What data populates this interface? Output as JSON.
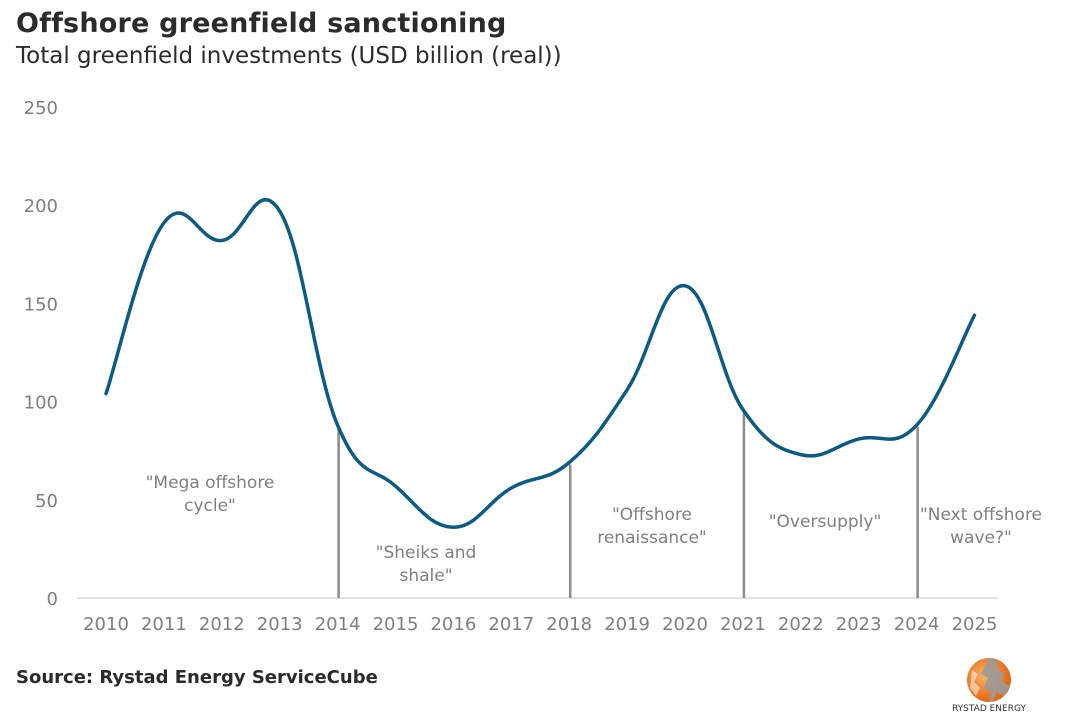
{
  "chart_data": {
    "type": "line",
    "title": "Offshore greenfield sanctioning",
    "subtitle": "Total greenfield investments (USD billion (real))",
    "xlabel": "",
    "ylabel": "",
    "categories": [
      "2010",
      "2011",
      "2012",
      "2013",
      "2014",
      "2015",
      "2016",
      "2017",
      "2018",
      "2019",
      "2020",
      "2021",
      "2022",
      "2023",
      "2024",
      "2025"
    ],
    "series": [
      {
        "name": "Total greenfield investments",
        "color": "#0b5b85",
        "values": [
          104,
          191,
          182,
          197,
          88,
          57,
          36,
          56,
          69,
          106,
          159,
          96,
          73,
          81,
          88,
          144
        ]
      }
    ],
    "ylim": [
      0,
      250
    ],
    "yticks": [
      "0",
      "50",
      "100",
      "150",
      "200",
      "250"
    ],
    "ytick_values": [
      0,
      50,
      100,
      150,
      200,
      250
    ],
    "grid": false,
    "legend": "none",
    "period_dividers": [
      "2014",
      "2018",
      "2021",
      "2024"
    ],
    "annotations": [
      {
        "lines": [
          "\"Mega offshore",
          "cycle\""
        ],
        "period": "2010-2014"
      },
      {
        "lines": [
          "\"Sheiks and",
          "shale\""
        ],
        "period": "2014-2018"
      },
      {
        "lines": [
          "\"Offshore",
          "renaissance\""
        ],
        "period": "2018-2021"
      },
      {
        "lines": [
          "\"Oversupply\""
        ],
        "period": "2021-2024"
      },
      {
        "lines": [
          "\"Next offshore",
          "wave?\""
        ],
        "period": "2024-2025"
      }
    ]
  },
  "footer": {
    "source": "Source: Rystad Energy ServiceCube",
    "logo_text": "RYSTAD ENERGY"
  },
  "colors": {
    "line": "#0b5b85",
    "divider": "#8c8c8c",
    "axis": "#d9d9d9",
    "tick": "#7f7f7f",
    "logo_orange": "#f07b1d",
    "logo_gray": "#9a9a9a"
  }
}
